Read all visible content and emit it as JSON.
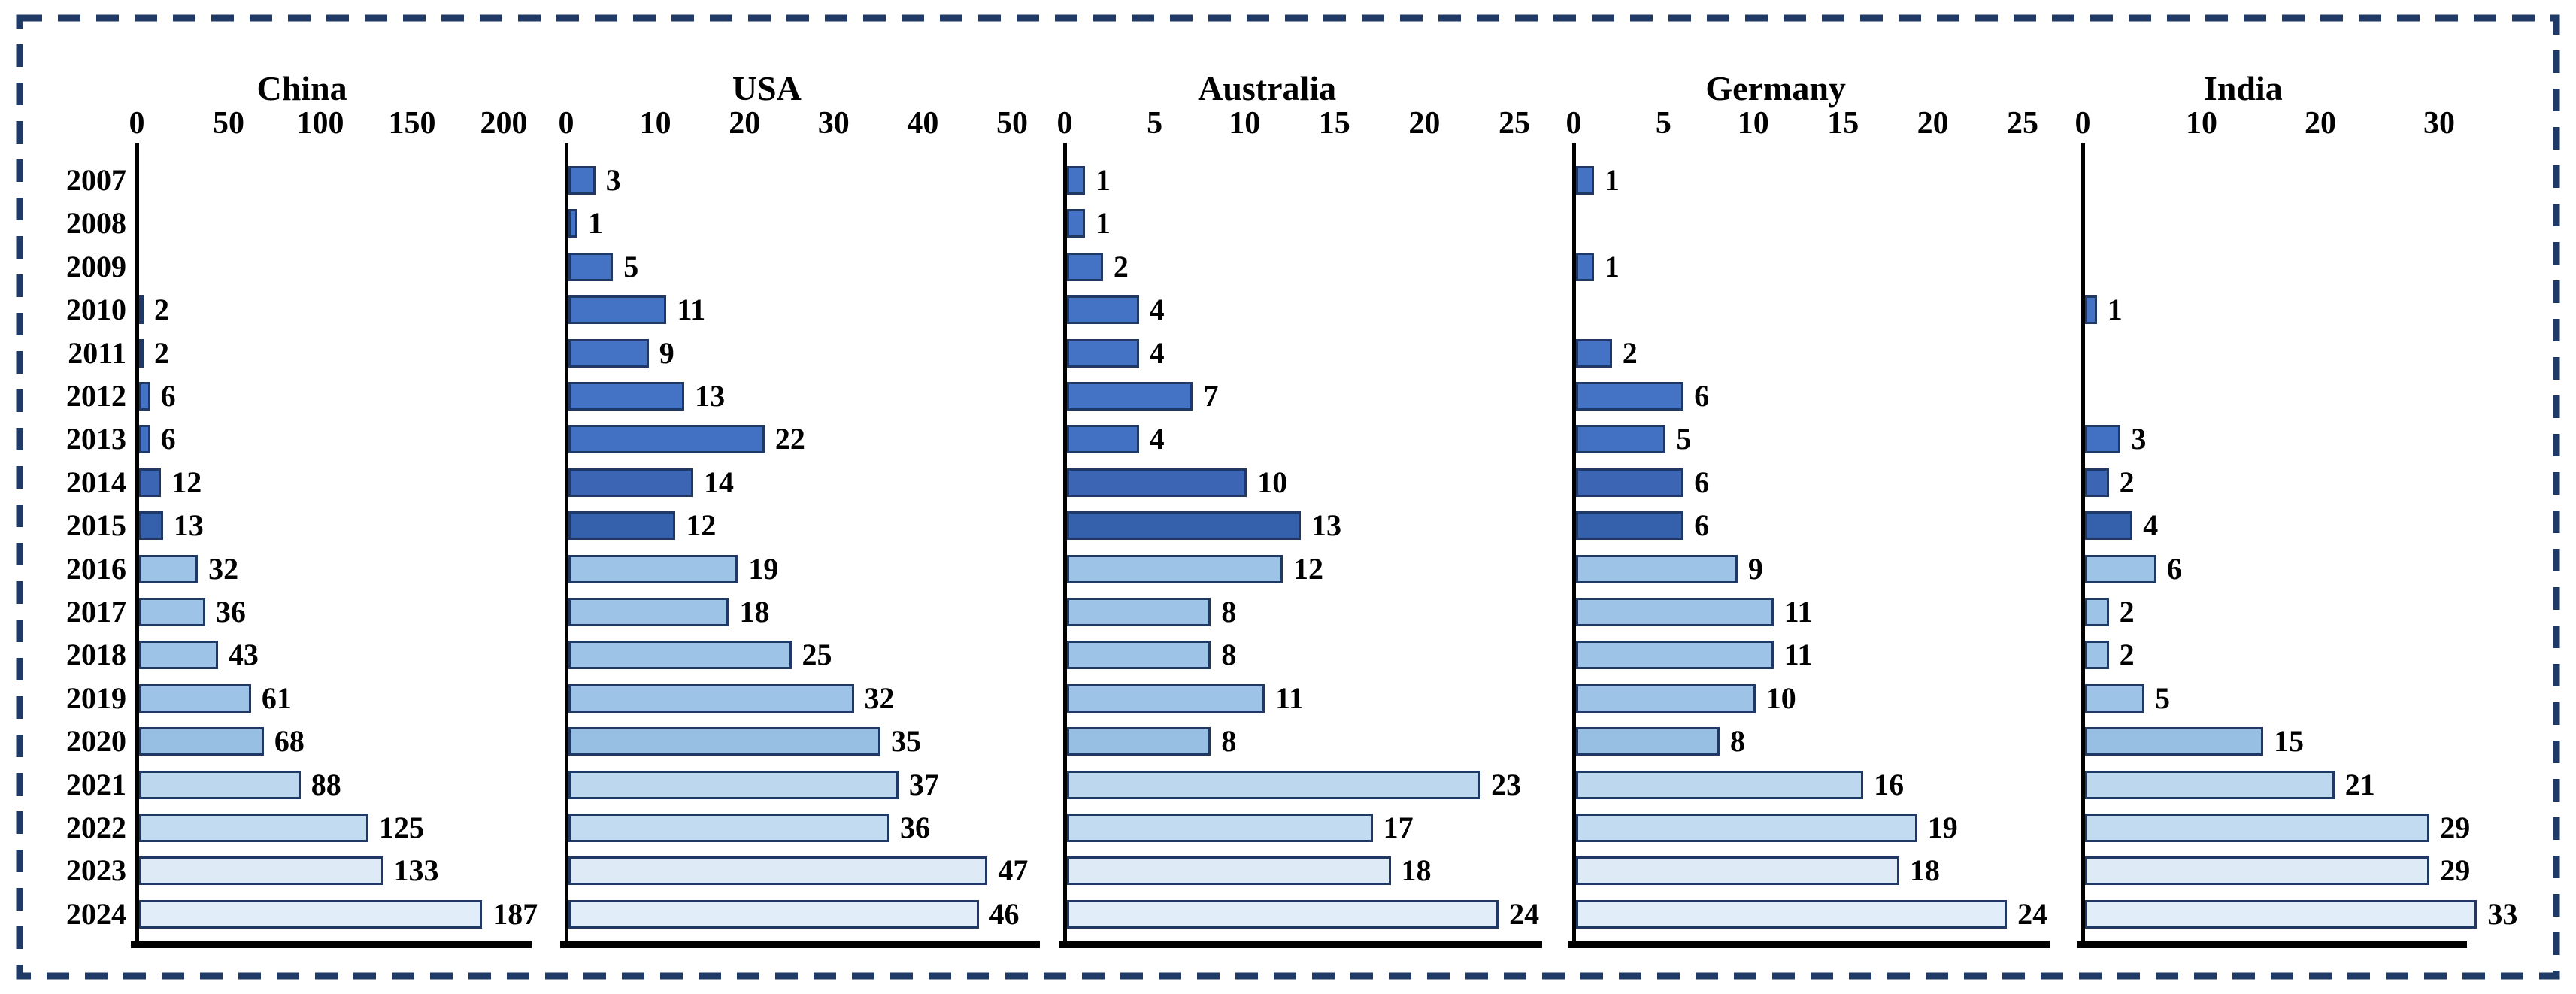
{
  "frame": {
    "border_color": "#1F3A66",
    "background_color": "#FFFFFF"
  },
  "years": [
    "2007",
    "2008",
    "2009",
    "2010",
    "2011",
    "2012",
    "2013",
    "2014",
    "2015",
    "2016",
    "2017",
    "2018",
    "2019",
    "2020",
    "2021",
    "2022",
    "2023",
    "2024"
  ],
  "bar_style": {
    "border_color": "#1F3864",
    "colors_by_year": [
      "#4472C4",
      "#4472C4",
      "#4472C4",
      "#4472C4",
      "#4472C4",
      "#4472C4",
      "#4270C2",
      "#3C66B4",
      "#3560AC",
      "#9DC3E6",
      "#9DC3E6",
      "#9DC3E6",
      "#9DC3E6",
      "#97BFE3",
      "#BDD7EE",
      "#C3DBF0",
      "#DEEBF7",
      "#E1EDF8"
    ]
  },
  "chart_data": [
    {
      "type": "bar",
      "orientation": "horizontal",
      "title": "China",
      "categories": [
        "2007",
        "2008",
        "2009",
        "2010",
        "2011",
        "2012",
        "2013",
        "2014",
        "2015",
        "2016",
        "2017",
        "2018",
        "2019",
        "2020",
        "2021",
        "2022",
        "2023",
        "2024"
      ],
      "values": [
        null,
        null,
        null,
        2,
        2,
        6,
        6,
        12,
        13,
        32,
        36,
        43,
        61,
        68,
        88,
        125,
        133,
        187
      ],
      "xlim": [
        0,
        200
      ],
      "xticks": [
        0,
        50,
        100,
        150,
        200
      ],
      "grid": false,
      "legend": "none"
    },
    {
      "type": "bar",
      "orientation": "horizontal",
      "title": "USA",
      "categories": [
        "2007",
        "2008",
        "2009",
        "2010",
        "2011",
        "2012",
        "2013",
        "2014",
        "2015",
        "2016",
        "2017",
        "2018",
        "2019",
        "2020",
        "2021",
        "2022",
        "2023",
        "2024"
      ],
      "values": [
        3,
        1,
        5,
        11,
        9,
        13,
        22,
        14,
        12,
        19,
        18,
        25,
        32,
        35,
        37,
        36,
        47,
        46
      ],
      "xlim": [
        0,
        50
      ],
      "xticks": [
        0,
        10,
        20,
        30,
        40,
        50
      ],
      "grid": false,
      "legend": "none"
    },
    {
      "type": "bar",
      "orientation": "horizontal",
      "title": "Australia",
      "categories": [
        "2007",
        "2008",
        "2009",
        "2010",
        "2011",
        "2012",
        "2013",
        "2014",
        "2015",
        "2016",
        "2017",
        "2018",
        "2019",
        "2020",
        "2021",
        "2022",
        "2023",
        "2024"
      ],
      "values": [
        1,
        1,
        2,
        4,
        4,
        7,
        4,
        10,
        13,
        12,
        8,
        8,
        11,
        8,
        23,
        17,
        18,
        24
      ],
      "xlim": [
        0,
        25
      ],
      "xticks": [
        0,
        5,
        10,
        15,
        20,
        25
      ],
      "grid": false,
      "legend": "none"
    },
    {
      "type": "bar",
      "orientation": "horizontal",
      "title": "Germany",
      "categories": [
        "2007",
        "2008",
        "2009",
        "2010",
        "2011",
        "2012",
        "2013",
        "2014",
        "2015",
        "2016",
        "2017",
        "2018",
        "2019",
        "2020",
        "2021",
        "2022",
        "2023",
        "2024"
      ],
      "values": [
        1,
        null,
        1,
        null,
        2,
        6,
        5,
        6,
        6,
        9,
        11,
        11,
        10,
        8,
        16,
        19,
        18,
        24
      ],
      "xlim": [
        0,
        25
      ],
      "xticks": [
        0,
        5,
        10,
        15,
        20,
        25
      ],
      "grid": false,
      "legend": "none"
    },
    {
      "type": "bar",
      "orientation": "horizontal",
      "title": "India",
      "categories": [
        "2007",
        "2008",
        "2009",
        "2010",
        "2011",
        "2012",
        "2013",
        "2014",
        "2015",
        "2016",
        "2017",
        "2018",
        "2019",
        "2020",
        "2021",
        "2022",
        "2023",
        "2024"
      ],
      "values": [
        null,
        null,
        null,
        1,
        null,
        null,
        3,
        2,
        4,
        6,
        2,
        2,
        5,
        15,
        21,
        29,
        29,
        33
      ],
      "xlim": [
        0,
        30
      ],
      "xticks": [
        0,
        10,
        20,
        30
      ],
      "grid": false,
      "legend": "none"
    }
  ]
}
